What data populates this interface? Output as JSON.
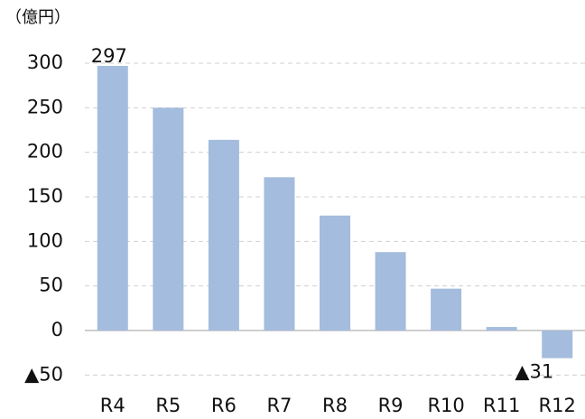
{
  "chart_data": {
    "type": "bar",
    "y_label": "（億円）",
    "categories": [
      "R4",
      "R5",
      "R6",
      "R7",
      "R8",
      "R9",
      "R10",
      "R11",
      "R12"
    ],
    "values": [
      297,
      250,
      214,
      172,
      129,
      88,
      47,
      4,
      -31
    ],
    "value_labels": [
      "297",
      null,
      null,
      null,
      null,
      null,
      null,
      null,
      "▲31"
    ],
    "color": "#a4bcdd",
    "ylim": [
      -55,
      305
    ],
    "yticks": [
      {
        "value": -50,
        "label": "▲50"
      },
      0,
      50,
      100,
      150,
      200,
      250,
      300
    ],
    "grid": true
  }
}
